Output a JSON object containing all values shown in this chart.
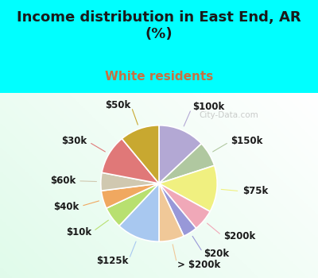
{
  "title": "Income distribution in East End, AR\n(%)",
  "subtitle": "White residents",
  "title_color": "#1a1a1a",
  "subtitle_color": "#c87040",
  "bg_cyan": "#00ffff",
  "watermark": "City-Data.com",
  "labels": [
    "$100k",
    "$150k",
    "$75k",
    "$200k",
    "$20k",
    "> $200k",
    "$125k",
    "$10k",
    "$40k",
    "$60k",
    "$30k",
    "$50k"
  ],
  "values": [
    13,
    7,
    13,
    6,
    4,
    7,
    12,
    6,
    5,
    5,
    11,
    11
  ],
  "colors": [
    "#b3a8d4",
    "#b0c8a0",
    "#f0f080",
    "#f0a8b8",
    "#9898d8",
    "#f0c898",
    "#a8c8f0",
    "#b8e070",
    "#f0a860",
    "#d0c8b0",
    "#e07878",
    "#c8a830"
  ],
  "line_colors": [
    "#b3a8d4",
    "#b0c8a0",
    "#f0f080",
    "#f0a8b8",
    "#9898d8",
    "#f0c898",
    "#a8c8f0",
    "#b8e070",
    "#f0a860",
    "#d0c8b0",
    "#e07878",
    "#c8a830"
  ],
  "wedge_edge_color": "white",
  "wedge_edge_width": 1.2,
  "label_fontsize": 8.5,
  "title_fontsize": 13,
  "subtitle_fontsize": 11
}
